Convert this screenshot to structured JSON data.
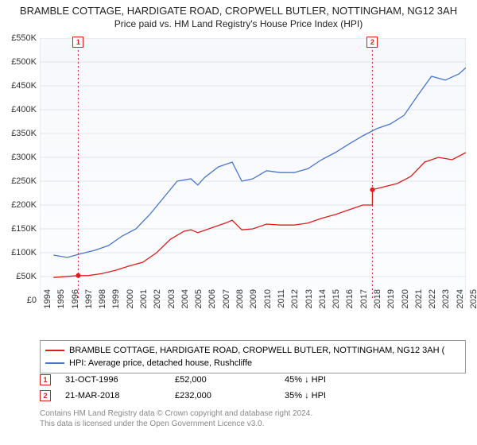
{
  "title": "BRAMBLE COTTAGE, HARDIGATE ROAD, CROPWELL BUTLER, NOTTINGHAM, NG12 3AH",
  "subtitle": "Price paid vs. HM Land Registry's House Price Index (HPI)",
  "chart": {
    "type": "line",
    "background_color": "#ffffff",
    "plot_bg_start": "#f6f8fb",
    "plot_bg_end": "#fcfdff",
    "grid_color": "#d8dde6",
    "axis_color": "#333333",
    "xlim": [
      1994,
      2025
    ],
    "ylim": [
      0,
      550
    ],
    "ytick_step": 50,
    "ytick_prefix": "£",
    "ytick_suffix": "K",
    "xticks": [
      1994,
      1995,
      1996,
      1997,
      1998,
      1999,
      2000,
      2001,
      2002,
      2003,
      2004,
      2005,
      2006,
      2007,
      2008,
      2009,
      2010,
      2011,
      2012,
      2013,
      2014,
      2015,
      2016,
      2017,
      2018,
      2019,
      2020,
      2021,
      2022,
      2023,
      2024,
      2025
    ],
    "label_fontsize": 11,
    "line_width": 1.3,
    "series": [
      {
        "name": "BRAMBLE COTTAGE, HARDIGATE ROAD, CROPWELL BUTLER, NOTTINGHAM, NG12 3AH (",
        "color": "#d91e1e",
        "data": [
          [
            1995.0,
            48
          ],
          [
            1996.8,
            52
          ],
          [
            1997.5,
            52
          ],
          [
            1998.5,
            56
          ],
          [
            1999.5,
            63
          ],
          [
            2000.5,
            72
          ],
          [
            2001.5,
            80
          ],
          [
            2002.5,
            100
          ],
          [
            2003.5,
            128
          ],
          [
            2004.5,
            145
          ],
          [
            2005.0,
            148
          ],
          [
            2005.5,
            142
          ],
          [
            2006.5,
            152
          ],
          [
            2007.5,
            162
          ],
          [
            2008.0,
            168
          ],
          [
            2008.7,
            148
          ],
          [
            2009.5,
            150
          ],
          [
            2010.5,
            160
          ],
          [
            2011.5,
            158
          ],
          [
            2012.5,
            158
          ],
          [
            2013.5,
            162
          ],
          [
            2014.5,
            172
          ],
          [
            2015.5,
            180
          ],
          [
            2016.5,
            190
          ],
          [
            2017.5,
            200
          ],
          [
            2018.2,
            232
          ],
          [
            2019.0,
            238
          ],
          [
            2020.0,
            245
          ],
          [
            2021.0,
            260
          ],
          [
            2022.0,
            290
          ],
          [
            2023.0,
            300
          ],
          [
            2024.0,
            295
          ],
          [
            2025.0,
            310
          ]
        ],
        "markers": [
          {
            "x": 1996.8,
            "y": 52,
            "style": "dot"
          },
          {
            "x": 2018.2,
            "y": 232,
            "style": "dot"
          }
        ],
        "jump_at": 2018.2
      },
      {
        "name": "HPI: Average price, detached house, Rushcliffe",
        "color": "#4a74c9",
        "data": [
          [
            1995.0,
            95
          ],
          [
            1996.0,
            90
          ],
          [
            1997.0,
            98
          ],
          [
            1998.0,
            105
          ],
          [
            1999.0,
            115
          ],
          [
            2000.0,
            135
          ],
          [
            2001.0,
            150
          ],
          [
            2002.0,
            180
          ],
          [
            2003.0,
            215
          ],
          [
            2004.0,
            250
          ],
          [
            2005.0,
            255
          ],
          [
            2005.5,
            242
          ],
          [
            2006.0,
            258
          ],
          [
            2007.0,
            280
          ],
          [
            2008.0,
            290
          ],
          [
            2008.7,
            250
          ],
          [
            2009.5,
            255
          ],
          [
            2010.5,
            272
          ],
          [
            2011.5,
            268
          ],
          [
            2012.5,
            268
          ],
          [
            2013.5,
            276
          ],
          [
            2014.5,
            295
          ],
          [
            2015.5,
            310
          ],
          [
            2016.5,
            328
          ],
          [
            2017.5,
            345
          ],
          [
            2018.5,
            360
          ],
          [
            2019.5,
            370
          ],
          [
            2020.5,
            388
          ],
          [
            2021.5,
            430
          ],
          [
            2022.5,
            470
          ],
          [
            2023.5,
            462
          ],
          [
            2024.5,
            475
          ],
          [
            2025.0,
            488
          ]
        ]
      }
    ],
    "event_markers": [
      {
        "id": "1",
        "x": 1996.8,
        "color": "#d91e1e"
      },
      {
        "id": "2",
        "x": 2018.2,
        "color": "#d91e1e"
      }
    ]
  },
  "legend": {
    "items": [
      {
        "color": "#d91e1e",
        "label": "BRAMBLE COTTAGE, HARDIGATE ROAD, CROPWELL BUTLER, NOTTINGHAM, NG12 3AH ("
      },
      {
        "color": "#4a74c9",
        "label": "HPI: Average price, detached house, Rushcliffe"
      }
    ]
  },
  "marker_table": [
    {
      "id": "1",
      "color": "#d91e1e",
      "date": "31-OCT-1996",
      "price": "£52,000",
      "delta": "45% ↓ HPI"
    },
    {
      "id": "2",
      "color": "#d91e1e",
      "date": "21-MAR-2018",
      "price": "£232,000",
      "delta": "35% ↓ HPI"
    }
  ],
  "attribution": {
    "line1": "Contains HM Land Registry data © Crown copyright and database right 2024.",
    "line2": "This data is licensed under the Open Government Licence v3.0."
  }
}
